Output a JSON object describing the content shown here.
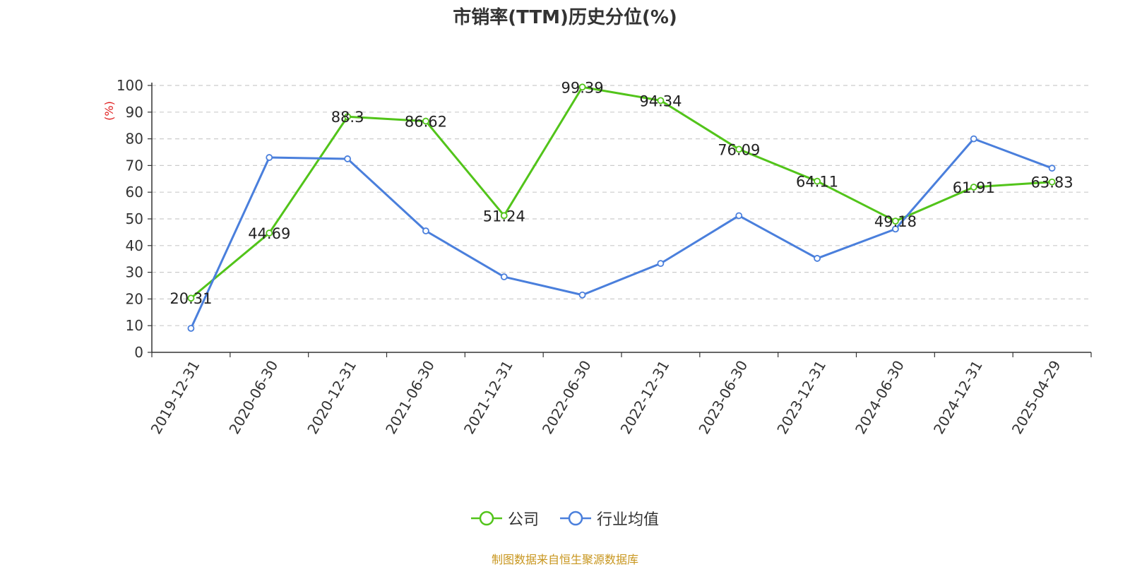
{
  "chart_data": {
    "type": "line",
    "title": "市销率(TTM)历史分位(%)",
    "ylabel": "(%)",
    "xlabel": "",
    "ylim": [
      0,
      100
    ],
    "yticks": [
      0,
      10,
      20,
      30,
      40,
      50,
      60,
      70,
      80,
      90,
      100
    ],
    "categories": [
      "2019-12-31",
      "2020-06-30",
      "2020-12-31",
      "2021-06-30",
      "2021-12-31",
      "2022-06-30",
      "2022-12-31",
      "2023-06-30",
      "2023-12-31",
      "2024-06-30",
      "2024-12-31",
      "2025-04-29"
    ],
    "grid": true,
    "legend_position": "bottom",
    "series": [
      {
        "name": "公司",
        "color": "#52c41a",
        "values": [
          20.31,
          44.69,
          88.3,
          86.62,
          51.24,
          99.39,
          94.34,
          76.09,
          64.11,
          49.18,
          61.91,
          63.83
        ],
        "labels": [
          "20.31",
          "44.69",
          "88.3",
          "86.62",
          "51.24",
          "99.39",
          "94.34",
          "76.09",
          "64.11",
          "49.18",
          "61.91",
          "63.83"
        ]
      },
      {
        "name": "行业均值",
        "color": "#4a7fdc",
        "values": [
          9,
          73,
          72.5,
          45.5,
          28.3,
          21.5,
          33.3,
          51.2,
          35.2,
          46.2,
          80,
          69
        ]
      }
    ]
  },
  "source": "制图数据来自恒生聚源数据库"
}
